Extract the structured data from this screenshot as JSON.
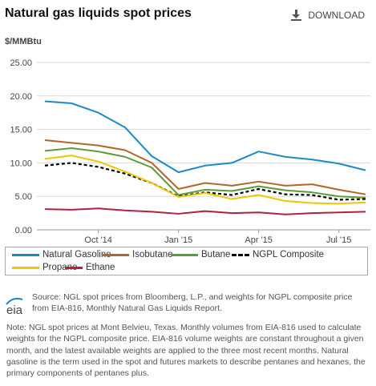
{
  "header": {
    "title": "Natural gas liquids spot prices",
    "download_label": "DOWNLOAD"
  },
  "chart_data": {
    "type": "line",
    "ylabel": "$/MMBtu",
    "ylim": [
      0,
      25
    ],
    "yticks": [
      "0.00",
      "5.00",
      "10.00",
      "15.00",
      "20.00",
      "25.00"
    ],
    "x_ticks": [
      "Oct '14",
      "Jan '15",
      "Apr '15",
      "Jul '15"
    ],
    "x": [
      "Aug '14",
      "Sep '14",
      "Oct '14",
      "Nov '14",
      "Dec '14",
      "Jan '15",
      "Feb '15",
      "Mar '15",
      "Apr '15",
      "May '15",
      "Jun '15",
      "Jul '15",
      "Aug '15"
    ],
    "grid": true,
    "legend_position": "bottom",
    "series": [
      {
        "name": "Natural Gasoline",
        "color": "#1f88c9",
        "values": [
          19.2,
          18.9,
          17.5,
          15.3,
          11.0,
          8.6,
          9.6,
          10.0,
          11.7,
          10.9,
          10.5,
          9.9,
          8.9
        ]
      },
      {
        "name": "Isobutane",
        "color": "#b5652a",
        "values": [
          13.4,
          13.0,
          12.6,
          11.9,
          10.0,
          6.1,
          7.0,
          6.6,
          7.2,
          6.6,
          6.8,
          6.0,
          5.3
        ]
      },
      {
        "name": "Butane",
        "color": "#5e9b36",
        "values": [
          11.8,
          12.2,
          11.7,
          10.9,
          9.3,
          5.2,
          6.0,
          5.8,
          6.5,
          5.9,
          5.6,
          5.0,
          4.8
        ]
      },
      {
        "name": "NGPL Composite",
        "color": "#000000",
        "dashed": true,
        "values": [
          9.6,
          10.0,
          9.4,
          8.4,
          7.0,
          5.0,
          5.6,
          5.2,
          6.1,
          5.3,
          5.2,
          4.5,
          4.6
        ]
      },
      {
        "name": "Propane",
        "color": "#f3c500",
        "values": [
          10.6,
          11.1,
          10.2,
          8.7,
          7.0,
          4.9,
          5.5,
          4.6,
          5.2,
          4.3,
          4.0,
          3.9,
          4.1
        ]
      },
      {
        "name": "Ethane",
        "color": "#b0223e",
        "values": [
          3.1,
          3.0,
          3.2,
          2.9,
          2.7,
          2.4,
          2.8,
          2.5,
          2.6,
          2.3,
          2.5,
          2.6,
          2.7
        ]
      }
    ]
  },
  "footer": {
    "source": "Source: NGL spot prices from Bloomberg, L.P., and weights for NGPL composite price from EIA-816, Monthly Natural Gas Liquids Report.",
    "note": "Note: NGL spot prices at Mont Belvieu, Texas. Monthly volumes from EIA-816 used to calculate weights for the NGPL composite price. EIA-816 volume weights are constant throughout a given month, and the latest available weights are applied to the three most recent months. Natural gasoline is the term used in the spot and futures markets to describe pentanes and hexanes, the primary components of pentanes plus.",
    "logo_text": "eia"
  }
}
